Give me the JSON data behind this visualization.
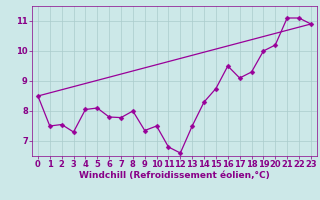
{
  "x_values": [
    0,
    1,
    2,
    3,
    4,
    5,
    6,
    7,
    8,
    9,
    10,
    11,
    12,
    13,
    14,
    15,
    16,
    17,
    18,
    19,
    20,
    21,
    22,
    23
  ],
  "line1_y": [
    8.5,
    7.5,
    7.55,
    7.3,
    8.05,
    8.1,
    7.8,
    7.78,
    8.0,
    7.35,
    7.5,
    6.8,
    6.6,
    7.5,
    8.3,
    8.75,
    9.5,
    9.1,
    9.3,
    10.0,
    10.2,
    11.1,
    11.1,
    10.9
  ],
  "line2_y_start": 8.5,
  "line2_y_end": 10.9,
  "line2_x_start": 0,
  "line2_x_end": 23,
  "line_color": "#990099",
  "bg_color": "#cce8e8",
  "grid_color": "#aacccc",
  "xlabel": "Windchill (Refroidissement éolien,°C)",
  "ylim_min": 6.5,
  "ylim_max": 11.5,
  "xlim_min": -0.5,
  "xlim_max": 23.5,
  "yticks": [
    7,
    8,
    9,
    10,
    11
  ],
  "xticks": [
    0,
    1,
    2,
    3,
    4,
    5,
    6,
    7,
    8,
    9,
    10,
    11,
    12,
    13,
    14,
    15,
    16,
    17,
    18,
    19,
    20,
    21,
    22,
    23
  ],
  "xlabel_fontsize": 6.5,
  "tick_fontsize": 6.0,
  "axis_color": "#880088",
  "marker_size": 2.5,
  "linewidth": 0.9
}
